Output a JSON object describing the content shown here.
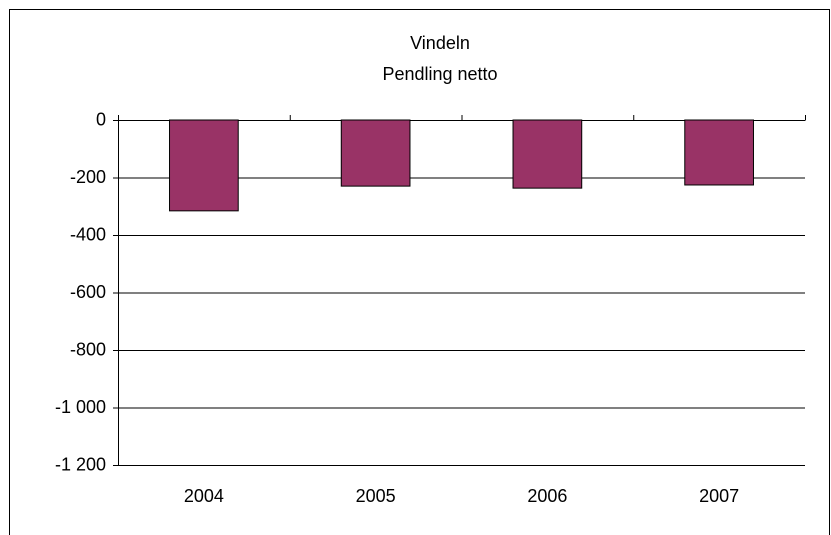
{
  "chart_data": {
    "type": "bar",
    "title": "Vindeln",
    "subtitle": "Pendling netto",
    "categories": [
      "2004",
      "2005",
      "2006",
      "2007"
    ],
    "values": [
      -316,
      -230,
      -237,
      -226
    ],
    "color": "#993366",
    "ylim": [
      -1200,
      0
    ],
    "yticks": [
      0,
      -200,
      -400,
      -600,
      -800,
      {
        "value": -1000,
        "label": "-1 000"
      },
      {
        "value": -1200,
        "label": "-1 200"
      }
    ],
    "grid": true
  }
}
